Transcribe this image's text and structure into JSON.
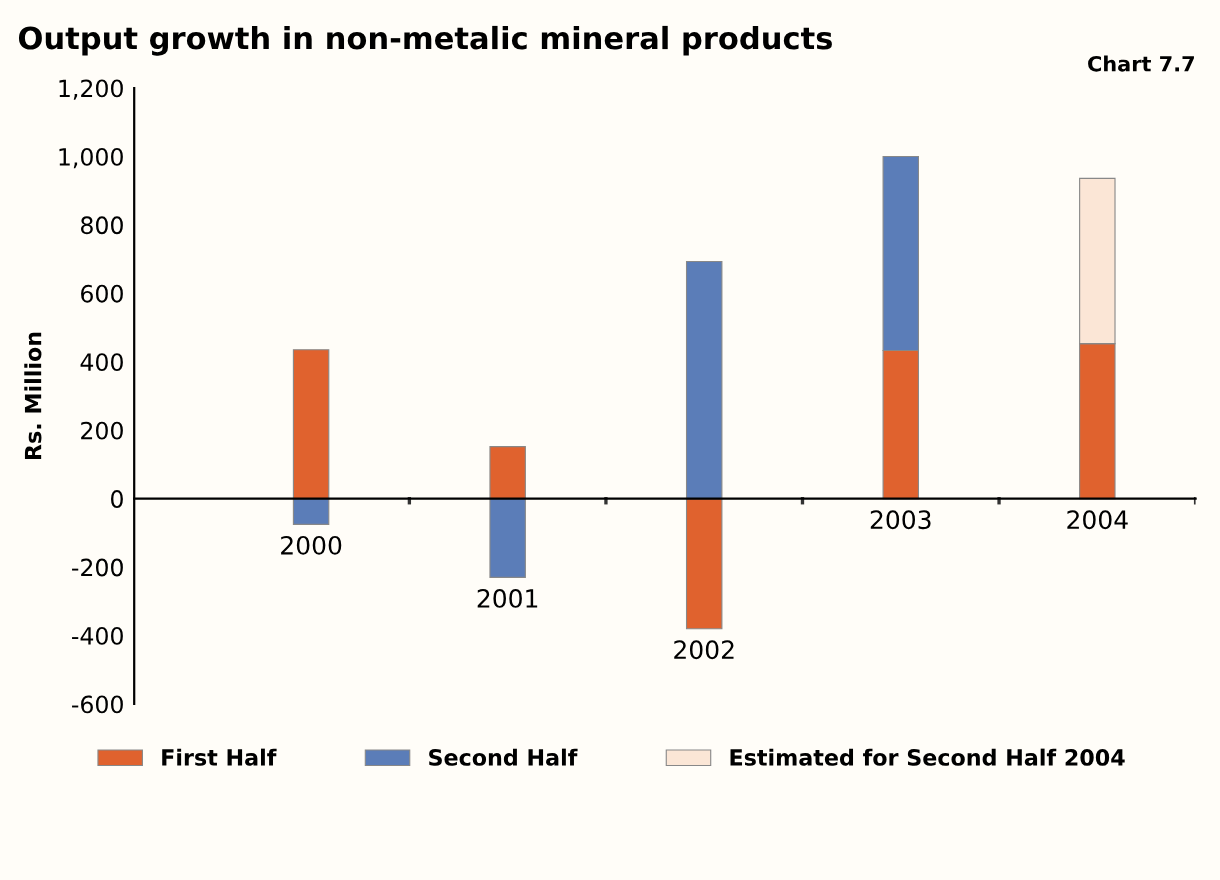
{
  "chart_data": {
    "type": "bar",
    "title": "Output growth in non-metalic mineral products",
    "ylabel": "Rs. Million",
    "annotations": [
      "Chart 7.7"
    ],
    "categories": [
      "2000",
      "2001",
      "2002",
      "2003",
      "2004"
    ],
    "stacked": true,
    "series": [
      {
        "name": "First Half",
        "color": "#e0622e",
        "values": [
          435,
          152,
          -380,
          433,
          453
        ]
      },
      {
        "name": "Second Half",
        "color": "#5b7db8",
        "values": [
          -75,
          -230,
          693,
          567,
          null
        ]
      },
      {
        "name": "Estimated for Second Half 2004",
        "color": "#fbe6d6",
        "values": [
          null,
          null,
          null,
          null,
          483
        ]
      }
    ],
    "ylim": [
      -600,
      1200
    ],
    "yticks": [
      {
        "value": -600,
        "label": "-600"
      },
      {
        "value": -400,
        "label": "-400"
      },
      {
        "value": -200,
        "label": "-200"
      },
      0,
      200,
      400,
      600,
      800,
      {
        "value": 1000,
        "label": "1,000"
      },
      {
        "value": 1200,
        "label": "1,200"
      }
    ],
    "grid": false,
    "legend": "bottom"
  }
}
